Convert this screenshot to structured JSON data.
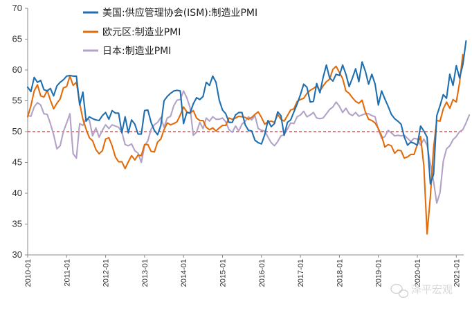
{
  "chart_data": {
    "type": "line",
    "title": "",
    "xlabel": "",
    "ylabel": "",
    "ylim": [
      30,
      70
    ],
    "yticks": [
      30,
      35,
      40,
      45,
      50,
      55,
      60,
      65,
      70
    ],
    "xtick_labels": [
      "2010-01",
      "2011-01",
      "2012-01",
      "2013-01",
      "2014-01",
      "2015-01",
      "2016-01",
      "2017-01",
      "2018-01",
      "2019-01",
      "2020-01",
      "2021-01"
    ],
    "reference_line": {
      "y": 50,
      "color": "#c00000",
      "style": "dashed"
    },
    "legend_position": "top-left",
    "x_start": "2010-01",
    "x_end": "2021-03",
    "series": [
      {
        "name": "美国:供应管理协会(ISM):制造业PMI",
        "color": "#1f6fb0",
        "values": [
          57.2,
          56.5,
          58.8,
          58.0,
          58.3,
          56.8,
          56.6,
          57.0,
          55.8,
          57.4,
          58.0,
          58.4,
          59.0,
          59.1,
          59.0,
          59.0,
          54.3,
          56.4,
          51.7,
          52.4,
          52.1,
          51.9,
          51.8,
          52.6,
          53.1,
          52.0,
          53.4,
          53.0,
          53.0,
          49.8,
          52.4,
          49.8,
          51.9,
          51.2,
          49.6,
          49.6,
          53.4,
          53.5,
          51.5,
          50.2,
          49.5,
          51.0,
          55.0,
          55.7,
          56.2,
          56.6,
          56.7,
          56.6,
          51.3,
          53.1,
          53.0,
          54.5,
          55.5,
          55.2,
          55.7,
          58.0,
          57.5,
          59.0,
          58.0,
          55.1,
          53.5,
          52.9,
          51.5,
          51.5,
          52.7,
          53.1,
          53.1,
          51.1,
          50.2,
          50.1,
          48.6,
          48.2,
          48.0,
          49.5,
          51.8,
          50.8,
          51.3,
          53.2,
          52.6,
          49.4,
          51.5,
          51.9,
          53.2,
          54.5,
          56.0,
          57.7,
          57.2,
          54.8,
          54.9,
          57.8,
          56.3,
          58.8,
          60.8,
          58.7,
          58.2,
          59.3,
          59.1,
          60.8,
          59.3,
          57.3,
          58.7,
          60.2,
          58.1,
          61.3,
          59.8,
          57.7,
          59.3,
          57.7,
          54.3,
          56.6,
          55.3,
          54.1,
          52.8,
          52.1,
          51.7,
          51.2,
          49.1,
          47.8,
          48.3,
          48.1,
          47.8,
          50.9,
          50.1,
          49.1,
          41.5,
          43.1,
          52.6,
          54.2,
          56.0,
          55.4,
          59.3,
          57.5,
          60.7,
          58.7,
          60.8,
          64.7
        ]
      },
      {
        "name": "欧元区:制造业PMI",
        "color": "#e36c0a",
        "values": [
          52.4,
          54.2,
          56.6,
          57.6,
          55.8,
          55.6,
          56.7,
          55.1,
          53.7,
          54.6,
          55.3,
          57.1,
          57.3,
          59.0,
          57.5,
          58.0,
          54.6,
          52.0,
          50.4,
          49.0,
          48.5,
          47.1,
          46.4,
          46.9,
          48.8,
          49.0,
          47.7,
          45.9,
          45.1,
          45.1,
          44.0,
          45.1,
          46.1,
          45.4,
          46.2,
          46.1,
          47.9,
          47.9,
          46.8,
          46.7,
          48.3,
          48.8,
          50.3,
          51.4,
          51.1,
          51.3,
          51.6,
          52.7,
          54.0,
          53.2,
          53.0,
          53.4,
          52.2,
          51.8,
          51.8,
          50.7,
          50.3,
          50.6,
          50.1,
          50.6,
          51.0,
          51.0,
          52.2,
          52.0,
          52.2,
          52.5,
          52.4,
          52.3,
          52.0,
          52.3,
          52.8,
          53.2,
          52.3,
          51.2,
          51.6,
          51.7,
          51.5,
          52.8,
          52.0,
          51.7,
          52.6,
          53.5,
          53.7,
          54.9,
          55.2,
          55.4,
          56.2,
          56.7,
          57.0,
          57.4,
          56.6,
          57.4,
          58.1,
          58.5,
          60.1,
          60.6,
          59.6,
          58.6,
          56.6,
          56.2,
          55.5,
          54.9,
          54.6,
          55.1,
          53.2,
          52.0,
          51.8,
          51.4,
          50.5,
          49.3,
          47.5,
          47.9,
          47.7,
          46.5,
          47.0,
          46.9,
          45.7,
          45.9,
          46.3,
          46.3,
          47.9,
          49.2,
          44.5,
          33.4,
          39.4,
          47.4,
          51.8,
          51.7,
          53.7,
          54.8,
          53.8,
          55.2,
          54.8,
          57.9,
          62.5
        ]
      },
      {
        "name": "日本:制造业PMI",
        "color": "#b3a2c7",
        "values": [
          52.6,
          52.5,
          54.0,
          54.7,
          54.3,
          52.9,
          52.8,
          51.3,
          49.5,
          47.2,
          47.7,
          50.0,
          51.4,
          52.9,
          46.4,
          45.7,
          51.3,
          51.0,
          52.1,
          51.9,
          49.3,
          50.6,
          49.1,
          50.2,
          51.1,
          50.5,
          51.1,
          50.9,
          50.7,
          49.9,
          47.9,
          47.7,
          48.0,
          46.9,
          46.5,
          45.0,
          47.7,
          48.5,
          50.4,
          51.1,
          51.5,
          52.3,
          50.7,
          52.2,
          52.5,
          54.2,
          55.1,
          55.2,
          56.6,
          55.5,
          53.9,
          49.4,
          49.9,
          51.5,
          50.5,
          52.2,
          51.7,
          52.4,
          52.0,
          52.0,
          52.2,
          51.6,
          50.3,
          49.9,
          50.9,
          50.1,
          51.2,
          51.7,
          52.4,
          51.9,
          52.6,
          50.5,
          50.2,
          50.1,
          49.1,
          48.2,
          47.7,
          48.4,
          49.3,
          49.5,
          50.4,
          51.4,
          51.3,
          52.4,
          52.7,
          53.3,
          52.4,
          52.7,
          53.1,
          52.2,
          52.1,
          52.2,
          52.9,
          53.6,
          54.0,
          54.8,
          54.1,
          53.1,
          53.8,
          52.9,
          52.6,
          53.1,
          52.5,
          52.7,
          52.9,
          52.9,
          52.6,
          52.4,
          50.3,
          48.9,
          49.2,
          50.2,
          49.8,
          49.3,
          49.4,
          49.3,
          49.4,
          48.9,
          48.4,
          48.9,
          48.8,
          47.8,
          48.8,
          47.8,
          44.8,
          41.9,
          38.4,
          40.1,
          45.2,
          47.2,
          47.7,
          48.7,
          49.2,
          50.0,
          50.3,
          51.4,
          52.7
        ]
      }
    ]
  },
  "watermark": {
    "icon": "wechat-icon",
    "text": "泽平宏观"
  }
}
